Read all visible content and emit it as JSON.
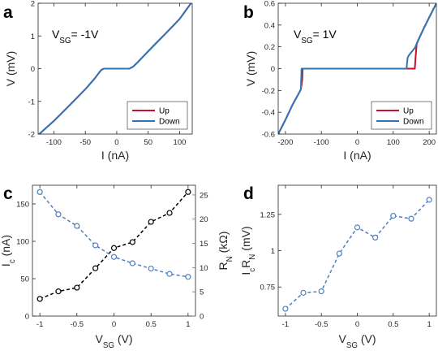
{
  "chart_data": [
    {
      "panel": "a",
      "type": "line",
      "annotation": {
        "prefix": "V",
        "sub": "SG",
        "suffix": "= -1V"
      },
      "xlabel": "I (nA)",
      "ylabel": "V (mV)",
      "xlim": [
        -125,
        120
      ],
      "ylim": [
        -2,
        2
      ],
      "xticks": [
        -100,
        -50,
        0,
        50,
        100
      ],
      "yticks": [
        -2,
        -1,
        0,
        1,
        2
      ],
      "legend": {
        "placement": "bottom-right",
        "entries": [
          "Up",
          "Down"
        ]
      },
      "series": [
        {
          "name": "Up",
          "color": "#c8102e",
          "x": [
            -125,
            -100,
            -75,
            -50,
            -35,
            -28,
            -24,
            -20,
            20,
            26,
            32,
            40,
            60,
            80,
            100,
            118
          ],
          "y": [
            -2.03,
            -1.6,
            -1.12,
            -0.63,
            -0.3,
            -0.12,
            -0.03,
            0,
            0,
            0.06,
            0.17,
            0.33,
            0.73,
            1.12,
            1.52,
            2.0
          ]
        },
        {
          "name": "Down",
          "color": "#2e75b6",
          "x": [
            -125,
            -100,
            -75,
            -50,
            -35,
            -28,
            -24,
            -20,
            20,
            26,
            32,
            40,
            60,
            80,
            100,
            118
          ],
          "y": [
            -2.03,
            -1.6,
            -1.12,
            -0.63,
            -0.3,
            -0.12,
            -0.03,
            0,
            0,
            0.06,
            0.17,
            0.33,
            0.73,
            1.12,
            1.52,
            2.0
          ]
        }
      ]
    },
    {
      "panel": "b",
      "type": "line",
      "annotation": {
        "prefix": "V",
        "sub": "SG",
        "suffix": "= 1V"
      },
      "xlabel": "I (nA)",
      "ylabel": "V (mV)",
      "xlim": [
        -220,
        220
      ],
      "ylim": [
        -0.6,
        0.6
      ],
      "xticks": [
        -200,
        -100,
        0,
        100,
        200
      ],
      "yticks": [
        -0.6,
        -0.4,
        -0.2,
        0,
        0.2,
        0.4,
        0.6
      ],
      "legend": {
        "placement": "bottom-right",
        "entries": [
          "Up",
          "Down"
        ]
      },
      "series": [
        {
          "name": "Up",
          "color": "#c8102e",
          "x": [
            -220,
            -200,
            -180,
            -165,
            -160,
            -157,
            -153,
            -152,
            160,
            162,
            165,
            168,
            185,
            200,
            220
          ],
          "y": [
            -0.6,
            -0.47,
            -0.33,
            -0.24,
            -0.21,
            -0.19,
            -0.1,
            0,
            0,
            0.1,
            0.22,
            0.25,
            0.37,
            0.47,
            0.6
          ]
        },
        {
          "name": "Down",
          "color": "#2e75b6",
          "x": [
            -220,
            -200,
            -180,
            -165,
            -160,
            -157,
            -155,
            137,
            140,
            143,
            150,
            160,
            168,
            185,
            200,
            220
          ],
          "y": [
            -0.6,
            -0.47,
            -0.33,
            -0.24,
            -0.21,
            -0.19,
            0,
            0,
            0.1,
            0.12,
            0.15,
            0.19,
            0.25,
            0.37,
            0.47,
            0.6
          ]
        }
      ]
    },
    {
      "panel": "c",
      "type": "line",
      "xlabel": {
        "prefix": "V",
        "sub": "SG",
        "suffix": " (V)"
      },
      "ylabel_left": {
        "prefix": "I",
        "sub": "c",
        "suffix": " (nA)"
      },
      "ylabel_right": {
        "prefix": "R",
        "sub": "N",
        "suffix": " (kΩ)"
      },
      "xlim": [
        -1.1,
        1.1
      ],
      "ylim_left": [
        0,
        175
      ],
      "ylim_right": [
        0,
        27
      ],
      "xticks": [
        -1,
        -0.5,
        0,
        0.5,
        1
      ],
      "yticks_left": [
        0,
        50,
        100,
        150
      ],
      "yticks_right": [
        0,
        5,
        10,
        15,
        20,
        25
      ],
      "x": [
        -1,
        -0.75,
        -0.5,
        -0.25,
        0,
        0.25,
        0.5,
        0.75,
        1
      ],
      "series": [
        {
          "name": "Ic",
          "color": "#000000",
          "axis": "left",
          "values": [
            23,
            33,
            38,
            64,
            91,
            99,
            126,
            138,
            166
          ]
        },
        {
          "name": "RN",
          "color": "#4f7ec0",
          "axis": "right",
          "values": [
            25.6,
            21.0,
            18.6,
            14.6,
            12.2,
            10.9,
            9.8,
            8.7,
            8.1
          ]
        }
      ]
    },
    {
      "panel": "d",
      "type": "line",
      "xlabel": {
        "prefix": "V",
        "sub": "SG",
        "suffix": " (V)"
      },
      "ylabel": {
        "parts": [
          [
            "I",
            ""
          ],
          [
            "c",
            "sub"
          ],
          [
            "R",
            ""
          ],
          [
            "N",
            "sub"
          ],
          [
            " (mV)",
            ""
          ]
        ]
      },
      "xlim": [
        -1.1,
        1.1
      ],
      "ylim": [
        0.55,
        1.45
      ],
      "xticks": [
        -1,
        -0.5,
        0,
        0.5,
        1
      ],
      "yticks": [
        0.75,
        1,
        1.25
      ],
      "x": [
        -1,
        -0.75,
        -0.5,
        -0.25,
        0,
        0.25,
        0.5,
        0.75,
        1
      ],
      "series": [
        {
          "name": "IcRN",
          "color": "#4f7ec0",
          "values": [
            0.6,
            0.71,
            0.72,
            0.98,
            1.16,
            1.09,
            1.24,
            1.22,
            1.35
          ]
        }
      ]
    }
  ],
  "panel_letters": [
    "a",
    "b",
    "c",
    "d"
  ],
  "tick_labels": {
    "a_x": [
      "-100",
      "-50",
      "0",
      "50",
      "100"
    ],
    "a_y": [
      "-2",
      "-1",
      "0",
      "1",
      "2"
    ],
    "b_x": [
      "-200",
      "-100",
      "0",
      "100",
      "200"
    ],
    "b_y": [
      "-0.6",
      "-0.4",
      "-0.2",
      "0",
      "0.2",
      "0.4",
      "0.6"
    ],
    "c_x": [
      "-1",
      "-0.5",
      "0",
      "0.5",
      "1"
    ],
    "c_yl": [
      "0",
      "50",
      "100",
      "150"
    ],
    "c_yr": [
      "0",
      "5",
      "10",
      "15",
      "20",
      "25"
    ],
    "d_x": [
      "-1",
      "-0.5",
      "0",
      "0.5",
      "1"
    ],
    "d_y": [
      "0.75",
      "1",
      "1.25"
    ]
  }
}
